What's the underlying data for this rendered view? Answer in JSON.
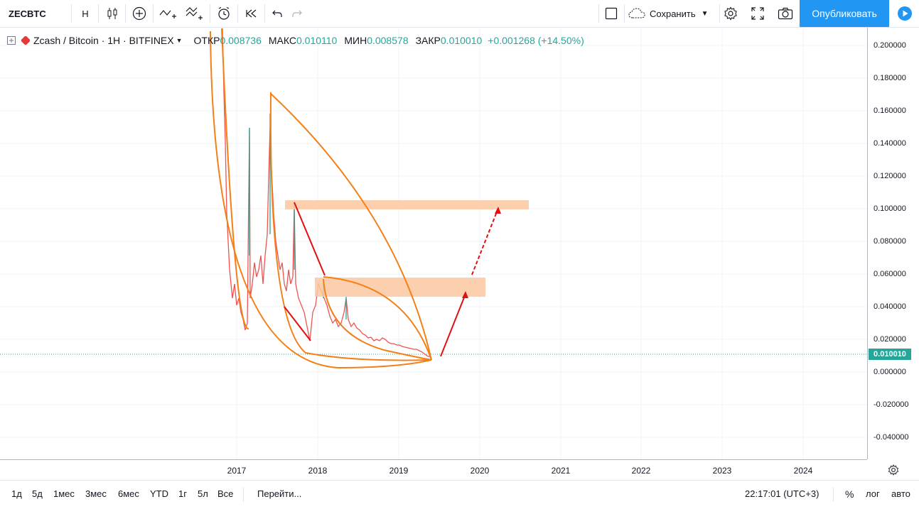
{
  "toolbar": {
    "symbol": "ZECBTC",
    "interval": "Н",
    "save_label": "Сохранить",
    "publish_label": "Опубликовать"
  },
  "legend": {
    "instrument": "Zcash / Bitcoin · 1Н · BITFINEX",
    "open_label": "ОТКР",
    "open_value": "0.008736",
    "high_label": "МАКС",
    "high_value": "0.010110",
    "low_label": "МИН",
    "low_value": "0.008578",
    "close_label": "ЗАКР",
    "close_value": "0.010010",
    "change": "+0.001268 (+14.50%)"
  },
  "price_axis": {
    "ticks": [
      "0.200000",
      "0.180000",
      "0.160000",
      "0.140000",
      "0.120000",
      "0.100000",
      "0.080000",
      "0.060000",
      "0.040000",
      "0.020000",
      "0.000000",
      "-0.020000",
      "-0.040000"
    ],
    "tick_values": [
      0.2,
      0.18,
      0.16,
      0.14,
      0.12,
      0.1,
      0.08,
      0.06,
      0.04,
      0.02,
      0,
      -0.02,
      -0.04
    ],
    "current_price": "0.010010",
    "current_value": 0.01001
  },
  "time_axis": {
    "labels": [
      "2017",
      "2018",
      "2019",
      "2020",
      "2021",
      "2022",
      "2023",
      "2024"
    ]
  },
  "bottom": {
    "ranges": [
      "1д",
      "5д",
      "1мес",
      "3мес",
      "6мес",
      "YTD",
      "1г",
      "5л",
      "Все"
    ],
    "goto": "Перейти...",
    "clock": "22:17:01 (UTC+3)",
    "percent": "%",
    "log": "лог",
    "auto": "авто"
  },
  "colors": {
    "up": "#26a69a",
    "down": "#ef5350",
    "accent": "#2196f3",
    "drawing_curve": "#f57f17",
    "drawing_arrow": "#e01010",
    "zone_fill": "#fbc8a0"
  },
  "icons": [
    "candles-icon",
    "plus-circle-icon",
    "indicators-icon",
    "compare-icon",
    "alert-icon",
    "replay-icon",
    "undo-icon",
    "redo-icon",
    "layout-icon",
    "cloud-icon",
    "gear-icon",
    "fullscreen-icon",
    "camera-icon",
    "play-icon"
  ]
}
